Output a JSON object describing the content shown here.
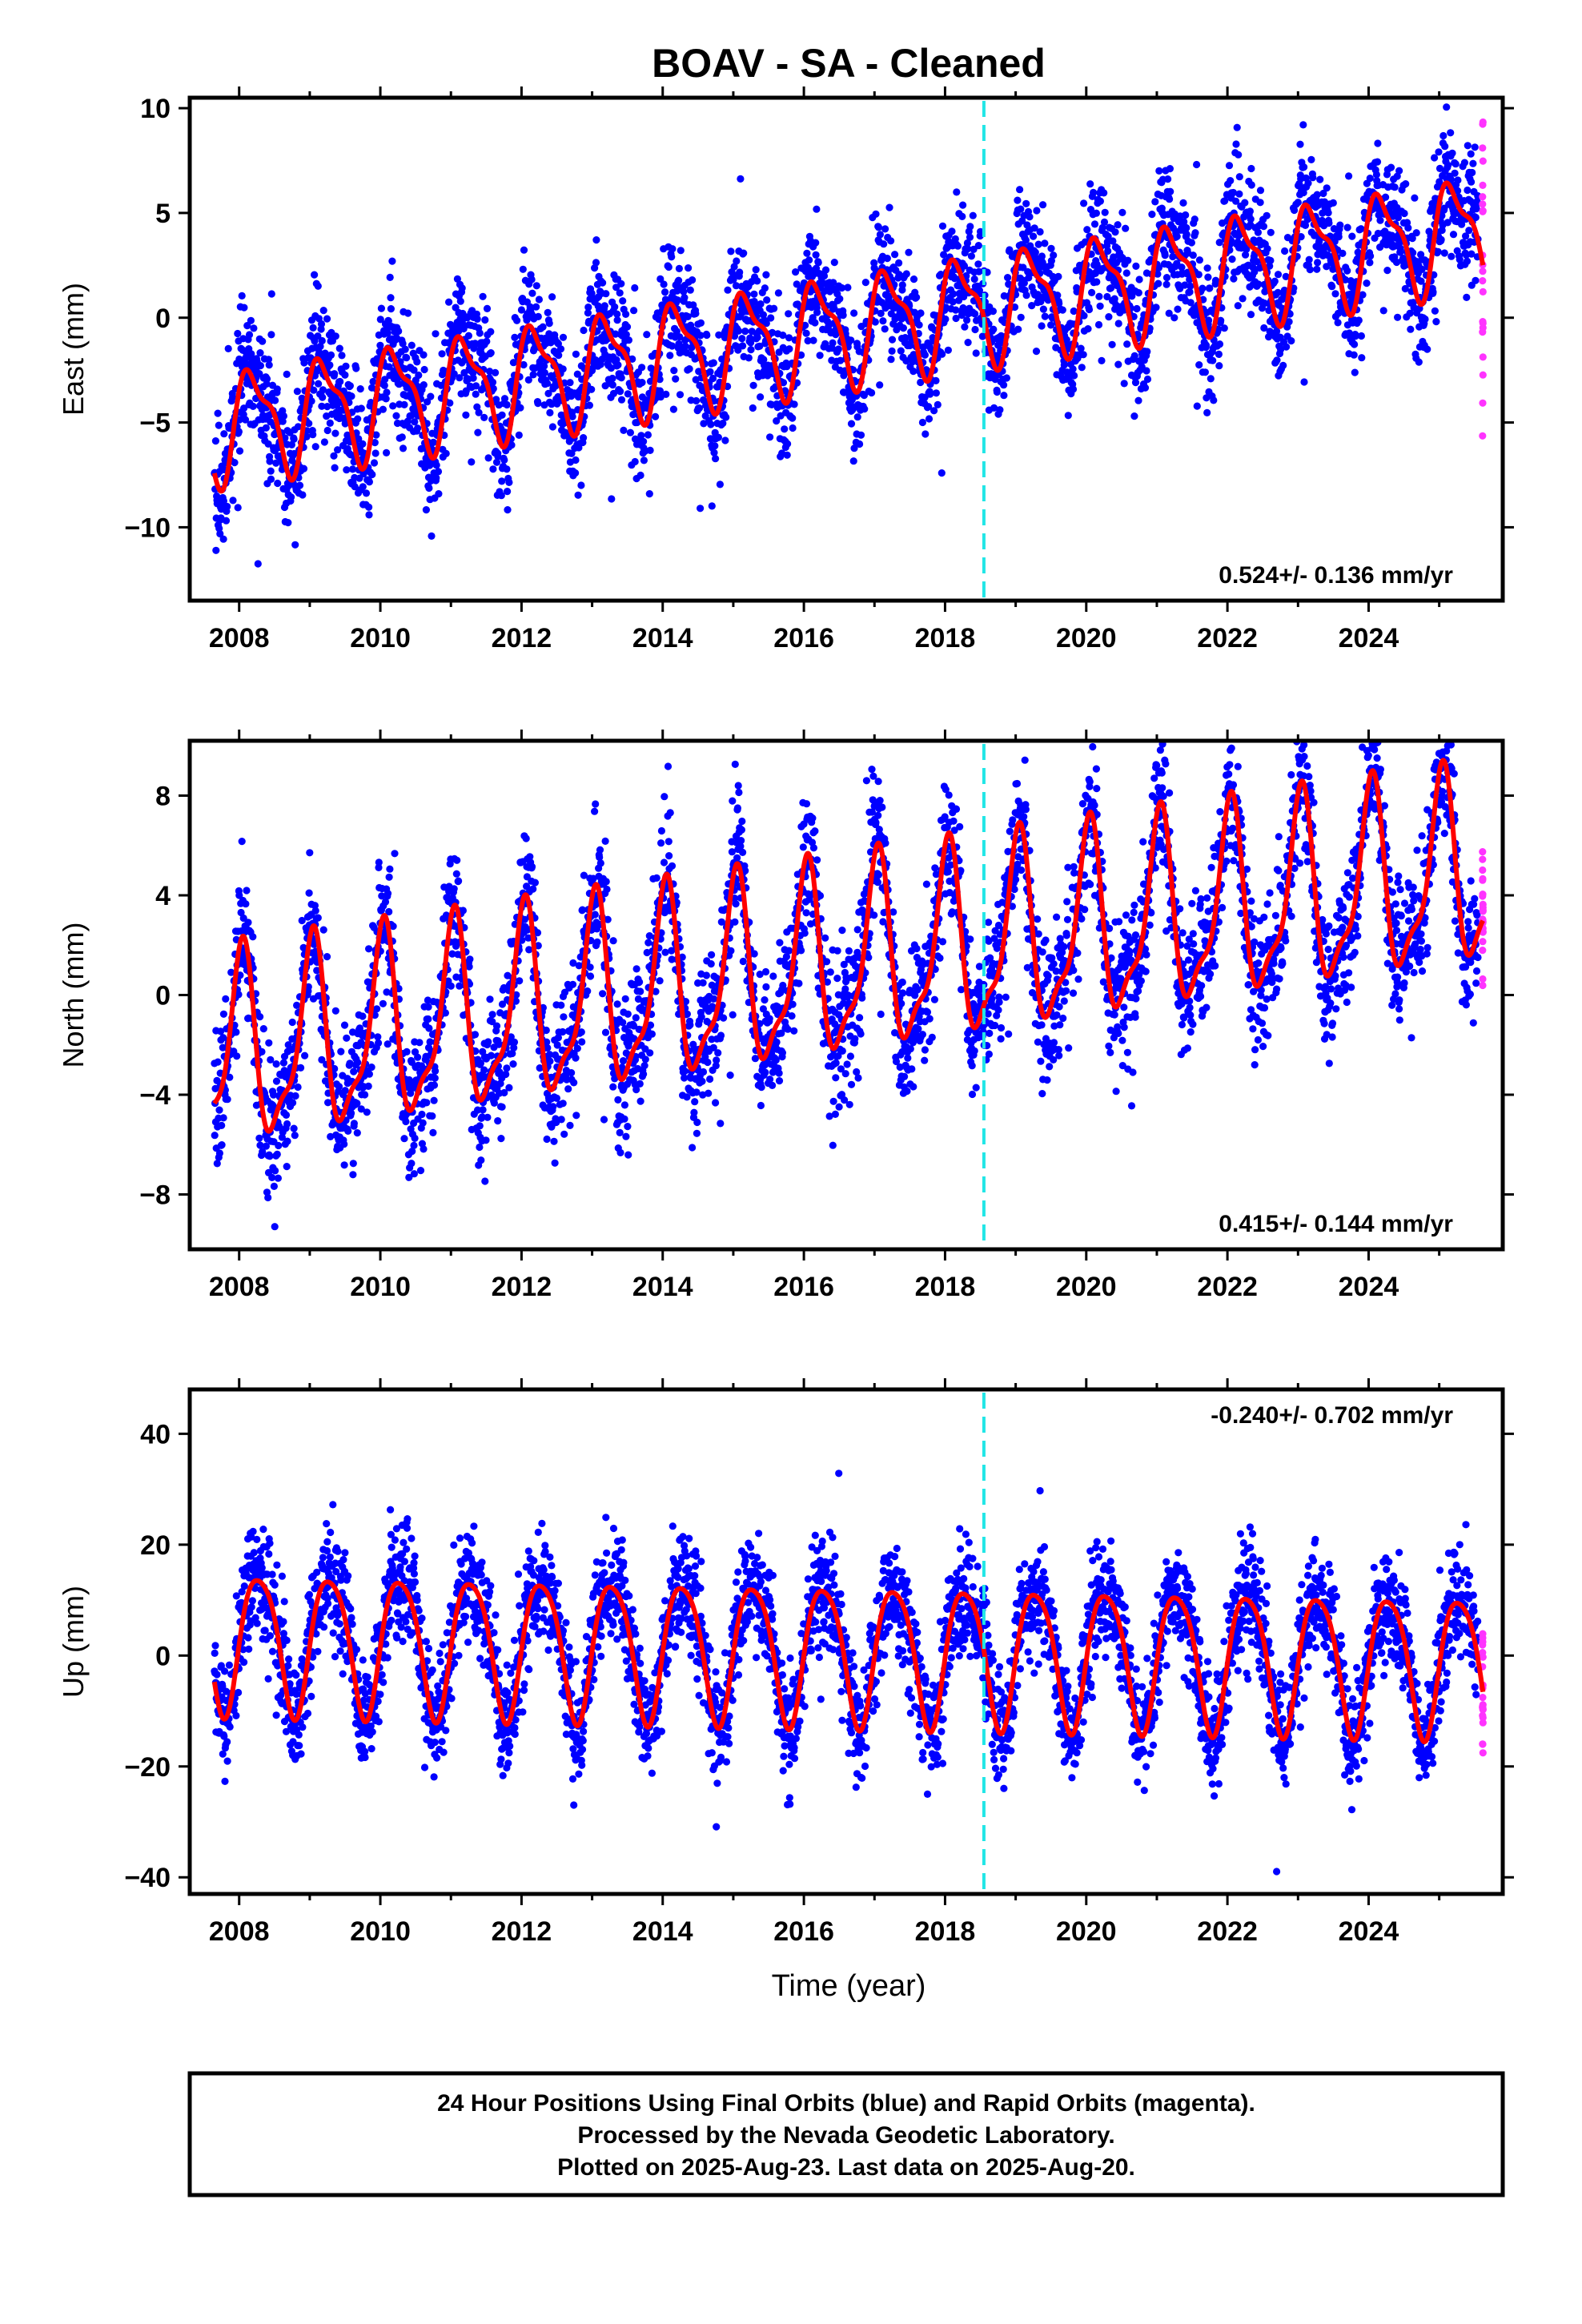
{
  "title": "BOAV  - SA - Cleaned",
  "xlabel": "Time (year)",
  "footer": {
    "line1": "24 Hour Positions Using Final Orbits (blue) and Rapid Orbits (magenta).",
    "line2": "Processed by the Nevada Geodetic Laboratory.",
    "line3": "Plotted on 2025-Aug-23. Last data on 2025-Aug-20."
  },
  "colors": {
    "final": "#0000ff",
    "rapid": "#ff33ff",
    "model": "#ff0000",
    "event": "#22e6e6",
    "frame": "#000000"
  },
  "chart_data": [
    {
      "type": "scatter",
      "component": "east",
      "ylabel": "East (mm)",
      "rate": "0.524+/- 0.136 mm/yr",
      "rate_position": "bottom-right",
      "xlim": [
        2007.3,
        2025.9
      ],
      "ylim": [
        -13.5,
        10.5
      ],
      "xticks": [
        2008,
        2010,
        2012,
        2014,
        2016,
        2018,
        2020,
        2022,
        2024
      ],
      "yticks": [
        10,
        5,
        0,
        -5,
        -10
      ],
      "event_line_x": 2018.55,
      "start_year": 2007.65,
      "end_year": 2025.62,
      "rapid_start_year": 2025.55,
      "trend": {
        "offset": -5.2,
        "slope": 0.524,
        "ref_year": 2007.65
      },
      "seasonal": {
        "a1": 2.4,
        "p1": 0.3,
        "a2": 0.9,
        "p2": 1.2
      },
      "noise_sd": 1.5,
      "grid": false
    },
    {
      "type": "scatter",
      "component": "north",
      "ylabel": "North (mm)",
      "rate": "0.415+/- 0.144 mm/yr",
      "rate_position": "bottom-right",
      "xlim": [
        2007.3,
        2025.9
      ],
      "ylim": [
        -10.2,
        10.2
      ],
      "xticks": [
        2008,
        2010,
        2012,
        2014,
        2016,
        2018,
        2020,
        2022,
        2024
      ],
      "yticks": [
        8,
        4,
        0,
        -4,
        -8
      ],
      "event_line_x": 2018.55,
      "start_year": 2007.65,
      "end_year": 2025.62,
      "rapid_start_year": 2025.55,
      "trend": {
        "offset": -2.5,
        "slope": 0.415,
        "ref_year": 2007.65
      },
      "seasonal": {
        "a1": 3.6,
        "p1": 1.4,
        "a2": 1.2,
        "p2": 0.6
      },
      "noise_sd": 1.4,
      "grid": false
    },
    {
      "type": "scatter",
      "component": "up",
      "ylabel": "Up (mm)",
      "rate": "-0.240+/- 0.702 mm/yr",
      "rate_position": "top-right",
      "xlim": [
        2007.3,
        2025.9
      ],
      "ylim": [
        -43,
        48
      ],
      "xticks": [
        2008,
        2010,
        2012,
        2014,
        2016,
        2018,
        2020,
        2022,
        2024
      ],
      "yticks": [
        40,
        20,
        0,
        -20,
        -40
      ],
      "event_line_x": 2018.55,
      "start_year": 2007.65,
      "end_year": 2025.62,
      "rapid_start_year": 2025.55,
      "trend": {
        "offset": 3.0,
        "slope": -0.24,
        "ref_year": 2007.65
      },
      "seasonal": {
        "a1": 12.5,
        "p1": -0.2,
        "a2": 2.0,
        "p2": 0.9
      },
      "noise_sd": 5.0,
      "grid": false
    }
  ]
}
